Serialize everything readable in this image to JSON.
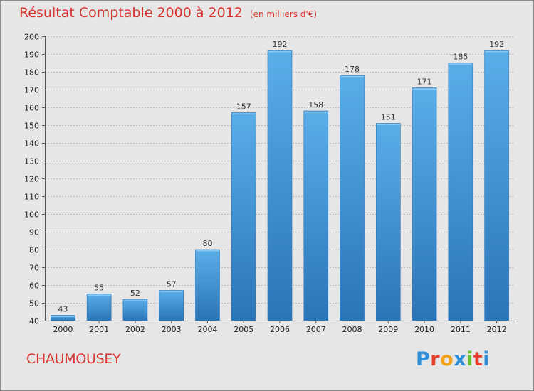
{
  "header": {
    "title": "Résultat Comptable 2000 à 2012",
    "subtitle": "(en milliers d'€)"
  },
  "footer": {
    "commune": "CHAUMOUSEY",
    "logo_letters": [
      "P",
      "r",
      "o",
      "x",
      "i",
      "t",
      "i"
    ],
    "logo_colors": [
      "#2f8fd8",
      "#e53e2f",
      "#f2a21a",
      "#2f8fd8",
      "#6cbf3a",
      "#e53e2f",
      "#2f8fd8"
    ]
  },
  "colors": {
    "bar": "#3f8fd6",
    "bar_light": "#5aaee8",
    "bar_dark": "#2a74b8",
    "grid": "#bdbdbd",
    "title": "#d9352f"
  },
  "chart_data": {
    "type": "bar",
    "title": "Résultat Comptable 2000 à 2012",
    "subtitle": "(en milliers d'€)",
    "xlabel": "",
    "ylabel": "",
    "categories": [
      "2000",
      "2001",
      "2002",
      "2003",
      "2004",
      "2005",
      "2006",
      "2007",
      "2008",
      "2009",
      "2010",
      "2011",
      "2012"
    ],
    "values": [
      43,
      55,
      52,
      57,
      80,
      157,
      192,
      158,
      178,
      151,
      171,
      185,
      192
    ],
    "ylim": [
      40,
      200
    ],
    "yticks": [
      40,
      50,
      60,
      70,
      80,
      90,
      100,
      110,
      120,
      130,
      140,
      150,
      160,
      170,
      180,
      190,
      200
    ],
    "grid": true
  }
}
